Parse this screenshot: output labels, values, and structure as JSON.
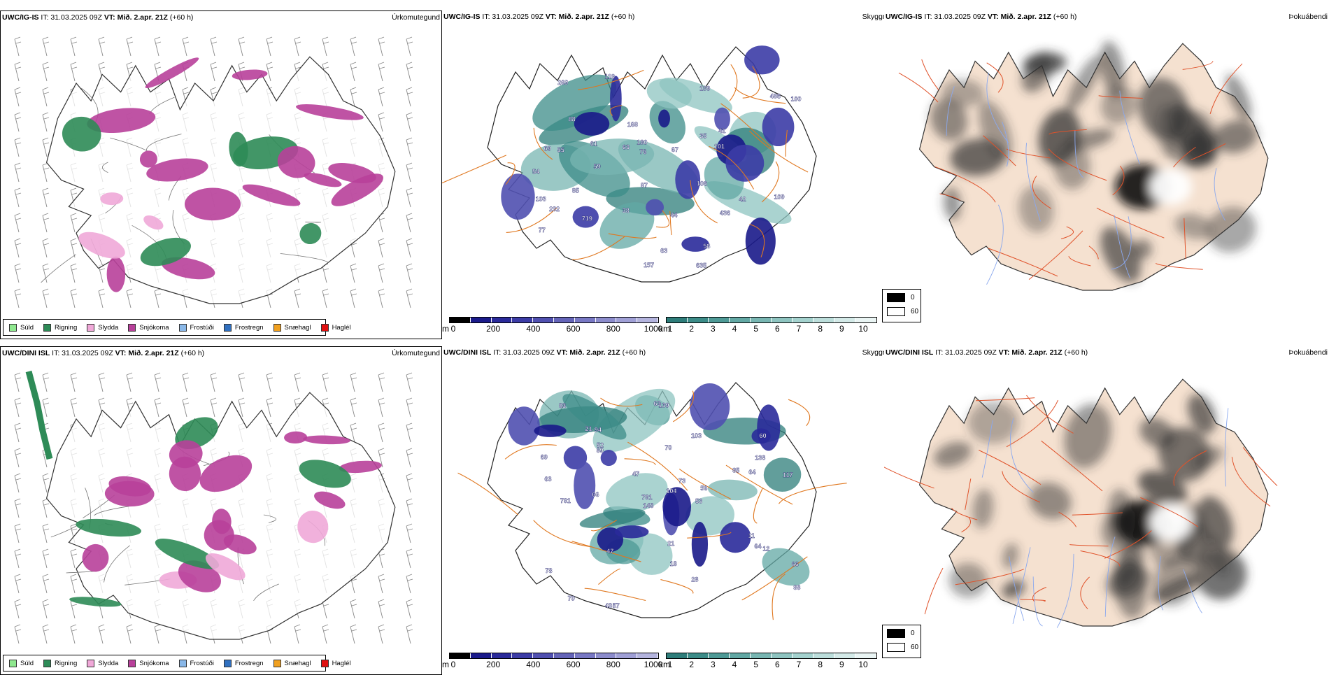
{
  "rows": [
    {
      "ptype": {
        "header_model": "UWC/IG-IS",
        "header_it": " IT: 31.03.2025 09Z ",
        "header_vt_label": "VT: ",
        "header_vt": "Mið. 2.apr. 21Z",
        "header_lead": " (+60 h)",
        "title": "Úrkomutegund"
      },
      "cloud": {
        "header_model": "UWC/IG-IS",
        "header_it": " IT: 31.03.2025 09Z ",
        "header_vt_label": "VT: ",
        "header_vt": "Mið. 2.apr. 21Z",
        "header_lead": " (+60 h)",
        "title": "Skyggni"
      },
      "fog": {
        "header_model": "UWC/IG-IS",
        "header_it": " IT: 31.03.2025 09Z ",
        "header_vt_label": "VT: ",
        "header_vt": "Mið. 2.apr. 21Z",
        "header_lead": " (+60 h)",
        "title": "Þokuábendi"
      }
    },
    {
      "ptype": {
        "header_model": "UWC/DINI ISL",
        "header_it": " IT: 31.03.2025 09Z ",
        "header_vt_label": "VT: ",
        "header_vt": "Mið. 2.apr. 21Z",
        "header_lead": " (+60 h)",
        "title": "Úrkomutegund"
      },
      "cloud": {
        "header_model": "UWC/DINI ISL",
        "header_it": " IT: 31.03.2025 09Z ",
        "header_vt_label": "VT: ",
        "header_vt": "Mið. 2.apr. 21Z",
        "header_lead": " (+60 h)",
        "title": "Skyggni"
      },
      "fog": {
        "header_model": "UWC/DINI ISL",
        "header_it": " IT: 31.03.2025 09Z ",
        "header_vt_label": "VT: ",
        "header_vt": "Mið. 2.apr. 21Z",
        "header_lead": " (+60 h)",
        "title": "Þokuábendi"
      }
    }
  ],
  "ptype_legend": [
    {
      "label": "Súld",
      "color": "#8fe88f"
    },
    {
      "label": "Rigning",
      "color": "#2e8b57"
    },
    {
      "label": "Slydda",
      "color": "#f0a8d8"
    },
    {
      "label": "Snjókoma",
      "color": "#b8409a"
    },
    {
      "label": "Frostúði",
      "color": "#8ab8e8"
    },
    {
      "label": "Frostregn",
      "color": "#3070c0"
    },
    {
      "label": "Snæhagl",
      "color": "#f0a020"
    },
    {
      "label": "Haglél",
      "color": "#e01010"
    }
  ],
  "ceiling_bar": {
    "unit": "m",
    "ticks": [
      "0",
      "200",
      "400",
      "600",
      "800",
      "1000"
    ],
    "colors": [
      "#000000",
      "#1a1a8a",
      "#2a2a9a",
      "#3c3ca6",
      "#5050b0",
      "#6464b8",
      "#7878c4",
      "#8c8ccc",
      "#a0a0d6",
      "#b4b4de"
    ]
  },
  "visibility_bar": {
    "unit": "km",
    "ticks": [
      "1",
      "2",
      "3",
      "4",
      "5",
      "6",
      "7",
      "8",
      "9",
      "10"
    ],
    "colors": [
      "#2e7d7a",
      "#3c8c88",
      "#4e9a96",
      "#62a8a4",
      "#78b6b2",
      "#8ec4c0",
      "#a4d2ce",
      "#bcdedb",
      "#d4eae8",
      "#eaf5f4"
    ]
  },
  "fog_legend": [
    {
      "label": "0",
      "color": "#000000"
    },
    {
      "label": "60",
      "color": "#ffffff"
    }
  ],
  "labels_top": [
    "109",
    "180",
    "103",
    "35",
    "109",
    "77",
    "59",
    "67",
    "88",
    "69",
    "87",
    "101",
    "76",
    "635",
    "54",
    "58",
    "63",
    "157",
    "269",
    "38",
    "119",
    "55",
    "44",
    "486",
    "100",
    "168",
    "106",
    "232",
    "719",
    "42",
    "41",
    "63",
    "436",
    "61",
    "85"
  ],
  "labels_bottom": [
    "18",
    "138",
    "64",
    "57",
    "83",
    "53",
    "60",
    "52",
    "78",
    "21",
    "103",
    "139",
    "28",
    "70",
    "66",
    "63",
    "47",
    "56",
    "148",
    "43",
    "69",
    "11",
    "64",
    "85",
    "66",
    "94",
    "70",
    "89",
    "12",
    "104",
    "117",
    "63",
    "21",
    "781",
    "781",
    "73",
    "88",
    "47"
  ],
  "colors": {
    "iceland_fill": "#f5e1d0",
    "road": "#e07820",
    "river": "#8aa8ee"
  }
}
